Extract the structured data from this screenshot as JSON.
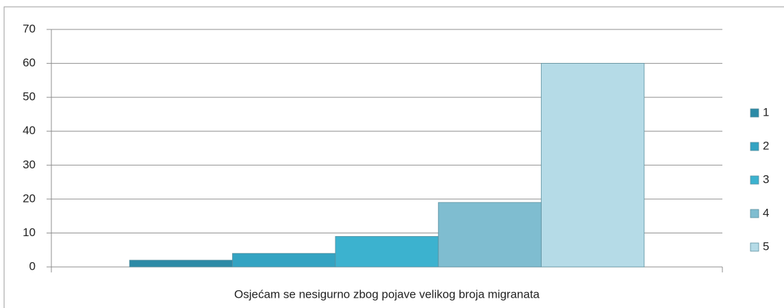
{
  "chart_data": {
    "type": "bar",
    "categories": [
      "Osjećam se nesigurno zbog pojave velikog broja migranata"
    ],
    "series": [
      {
        "name": "1",
        "color": "#2b8aa6",
        "values": [
          2
        ]
      },
      {
        "name": "2",
        "color": "#33a3c2",
        "values": [
          4
        ]
      },
      {
        "name": "3",
        "color": "#3cb2cf",
        "values": [
          9
        ]
      },
      {
        "name": "4",
        "color": "#7fbdd0",
        "values": [
          19
        ]
      },
      {
        "name": "5",
        "color": "#b5dbe7",
        "values": [
          60
        ]
      }
    ],
    "ylim": [
      0,
      70
    ],
    "yticks": [
      0,
      10,
      20,
      30,
      40,
      50,
      60,
      70
    ],
    "grid": true,
    "legend": "right"
  }
}
